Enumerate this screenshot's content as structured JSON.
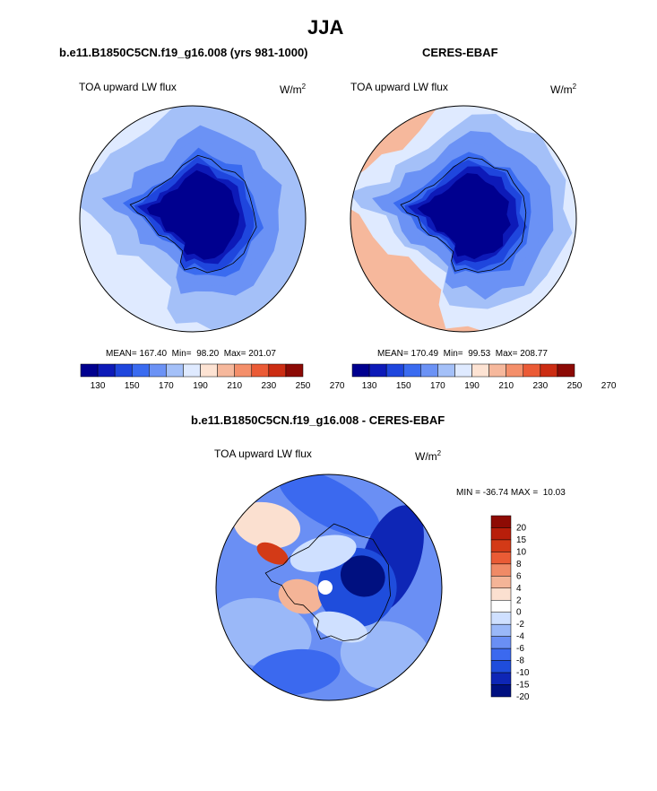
{
  "figure_title": "JJA",
  "colors": {
    "abs_scale": [
      "#00008f",
      "#0d1ab8",
      "#1f46dd",
      "#3a6bf0",
      "#6b92f5",
      "#a4c0f8",
      "#dfeaff",
      "#fde3d3",
      "#f6b89c",
      "#f48f6a",
      "#eb5b36",
      "#cc2d13",
      "#8c0a05"
    ],
    "diff_scale": [
      "#001080",
      "#0e26b6",
      "#1f4ddc",
      "#3b69ef",
      "#6a8ff4",
      "#9ab8f8",
      "#cfe0ff",
      "#ffffff",
      "#fbe0d0",
      "#f4b497",
      "#f08a66",
      "#ea5b35",
      "#d33a17",
      "#b81e0a",
      "#8e0b04"
    ],
    "land_outline": "#000000"
  },
  "chart_data": [
    {
      "type": "heatmap",
      "projection": "south-polar-stereographic",
      "title": "b.e11.B1850C5CN.f19_g16.008 (yrs 981-1000)",
      "left_label": "TOA upward LW flux",
      "units_base": "W/m",
      "units_exp": "2",
      "stats": {
        "mean_label": "MEAN=",
        "mean": "167.40",
        "min_label": "Min=",
        "min": "98.20",
        "max_label": "Max=",
        "max": "201.07"
      },
      "colorbar_ticks": [
        "130",
        "150",
        "170",
        "190",
        "210",
        "230",
        "250",
        "270"
      ],
      "contour_levels": [
        120,
        130,
        140,
        150,
        160,
        170,
        180,
        190,
        200,
        210,
        220,
        230,
        240,
        250,
        260,
        270,
        280
      ],
      "ring_values": [
        185,
        175,
        170,
        165,
        160,
        150,
        140,
        130,
        120,
        110
      ],
      "min_value": 98.2,
      "max_value": 201.07
    },
    {
      "type": "heatmap",
      "projection": "south-polar-stereographic",
      "title": "CERES-EBAF",
      "left_label": "TOA upward LW flux",
      "units_base": "W/m",
      "units_exp": "2",
      "stats": {
        "mean_label": "MEAN=",
        "mean": "170.49",
        "min_label": "Min=",
        "min": "99.53",
        "max_label": "Max=",
        "max": "208.77"
      },
      "colorbar_ticks": [
        "130",
        "150",
        "170",
        "190",
        "210",
        "230",
        "250",
        "270"
      ],
      "contour_levels": [
        120,
        130,
        140,
        150,
        160,
        170,
        180,
        190,
        200,
        210,
        220,
        230,
        240,
        250,
        260,
        270,
        280
      ],
      "ring_values": [
        205,
        185,
        175,
        165,
        160,
        150,
        140,
        130,
        120,
        110
      ],
      "min_value": 99.53,
      "max_value": 208.77
    },
    {
      "type": "heatmap",
      "projection": "south-polar-stereographic",
      "title": "b.e11.B1850C5CN.f19_g16.008 - CERES-EBAF",
      "left_label": "TOA upward LW flux",
      "units_base": "W/m",
      "units_exp": "2",
      "stats": {
        "min_label": "MIN =",
        "min": "-36.74",
        "max_label": "MAX =",
        "max": "10.03"
      },
      "colorbar_labels": [
        "20",
        "15",
        "10",
        "8",
        "6",
        "4",
        "2",
        "0",
        "-2",
        "-4",
        "-6",
        "-8",
        "-10",
        "-15",
        "-20"
      ],
      "contour_levels": [
        -20,
        -15,
        -10,
        -8,
        -6,
        -4,
        -2,
        0,
        2,
        4,
        6,
        8,
        10,
        15,
        20
      ],
      "min_value": -36.74,
      "max_value": 10.03
    }
  ]
}
